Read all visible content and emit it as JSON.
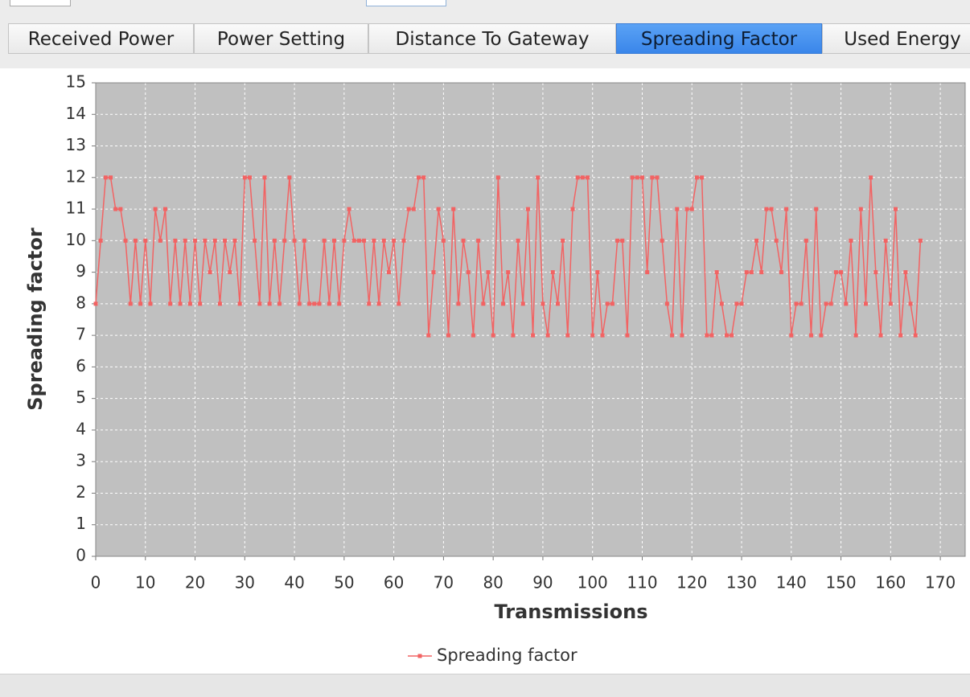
{
  "tabs": [
    "Received Power",
    "Power Setting",
    "Distance To Gateway",
    "Spreading Factor",
    "Used Energy"
  ],
  "selected_tab": 3,
  "chart_data": {
    "type": "line",
    "x_label": "Transmissions",
    "y_label": "Spreading factor",
    "x": [
      0,
      1,
      2,
      3,
      4,
      5,
      6,
      7,
      8,
      9,
      10,
      11,
      12,
      13,
      14,
      15,
      16,
      17,
      18,
      19,
      20,
      21,
      22,
      23,
      24,
      25,
      26,
      27,
      28,
      29,
      30,
      31,
      32,
      33,
      34,
      35,
      36,
      37,
      38,
      39,
      40,
      41,
      42,
      43,
      44,
      45,
      46,
      47,
      48,
      49,
      50,
      51,
      52,
      53,
      54,
      55,
      56,
      57,
      58,
      59,
      60,
      61,
      62,
      63,
      64,
      65,
      66,
      67,
      68,
      69,
      70,
      71,
      72,
      73,
      74,
      75,
      76,
      77,
      78,
      79,
      80,
      81,
      82,
      83,
      84,
      85,
      86,
      87,
      88,
      89,
      90,
      91,
      92,
      93,
      94,
      95,
      96,
      97,
      98,
      99,
      100,
      101,
      102,
      103,
      104,
      105,
      106,
      107,
      108,
      109,
      110,
      111,
      112,
      113,
      114,
      115,
      116,
      117,
      118,
      119,
      120,
      121,
      122,
      123,
      124,
      125,
      126,
      127,
      128,
      129,
      130,
      131,
      132,
      133,
      134,
      135,
      136,
      137,
      138,
      139,
      140,
      141,
      142,
      143,
      144,
      145,
      146,
      147,
      148,
      149,
      150,
      151,
      152,
      153,
      154,
      155,
      156,
      157,
      158,
      159,
      160,
      161,
      162,
      163,
      164,
      165,
      166
    ],
    "series": [
      {
        "name": "Spreading factor",
        "color": "#f26363",
        "values": [
          8,
          10,
          12,
          12,
          11,
          11,
          10,
          8,
          10,
          8,
          10,
          8,
          11,
          10,
          11,
          8,
          10,
          8,
          10,
          8,
          10,
          8,
          10,
          9,
          10,
          8,
          10,
          9,
          10,
          8,
          12,
          12,
          10,
          8,
          12,
          8,
          10,
          8,
          10,
          12,
          10,
          8,
          10,
          8,
          8,
          8,
          10,
          8,
          10,
          8,
          10,
          11,
          10,
          10,
          10,
          8,
          10,
          8,
          10,
          9,
          10,
          8,
          10,
          11,
          11,
          12,
          12,
          7,
          9,
          11,
          10,
          7,
          11,
          8,
          10,
          9,
          7,
          10,
          8,
          9,
          7,
          12,
          8,
          9,
          7,
          10,
          8,
          11,
          7,
          12,
          8,
          7,
          9,
          8,
          10,
          7,
          11,
          12,
          12,
          12,
          7,
          9,
          7,
          8,
          8,
          10,
          10,
          7,
          12,
          12,
          12,
          9,
          12,
          12,
          10,
          8,
          7,
          11,
          7,
          11,
          11,
          12,
          12,
          7,
          7,
          9,
          8,
          7,
          7,
          8,
          8,
          9,
          9,
          10,
          9,
          11,
          11,
          10,
          9,
          11,
          7,
          8,
          8,
          10,
          7,
          11,
          7,
          8,
          8,
          9,
          9,
          8,
          10,
          7,
          11,
          8,
          12,
          9,
          7,
          10,
          8,
          11,
          7,
          9,
          8,
          7,
          10
        ]
      }
    ],
    "xlim": [
      0,
      175
    ],
    "xticks": [
      0,
      10,
      20,
      30,
      40,
      50,
      60,
      70,
      80,
      90,
      100,
      110,
      120,
      130,
      140,
      150,
      160,
      170
    ],
    "ylim": [
      0,
      15
    ],
    "yticks": [
      0,
      1,
      2,
      3,
      4,
      5,
      6,
      7,
      8,
      9,
      10,
      11,
      12,
      13,
      14,
      15
    ],
    "grid": true,
    "legend": "bottom"
  }
}
